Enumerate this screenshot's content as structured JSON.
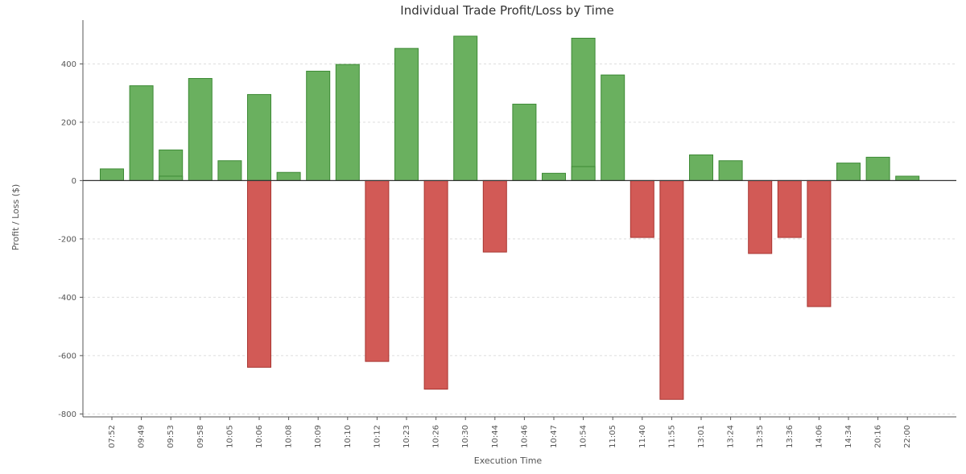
{
  "chart_data": {
    "type": "bar",
    "title": "Individual Trade Profit/Loss by Time",
    "xlabel": "Execution Time",
    "ylabel": "Profit / Loss ($)",
    "ylim": [
      -810,
      550
    ],
    "yticks": [
      -800,
      -600,
      -400,
      -200,
      0,
      200,
      400
    ],
    "grid": true,
    "colors": {
      "profit_fill": "#6ab05f",
      "profit_edge": "#3d8a35",
      "loss_fill": "#d25a56",
      "loss_edge": "#a83531"
    },
    "categories": [
      "07:52",
      "09:49",
      "09:53",
      "09:58",
      "10:05",
      "10:06",
      "10:08",
      "10:09",
      "10:10",
      "10:12",
      "10:23",
      "10:26",
      "10:30",
      "10:44",
      "10:46",
      "10:47",
      "10:54",
      "11:05",
      "11:40",
      "11:55",
      "13:01",
      "13:24",
      "13:35",
      "13:36",
      "14:06",
      "14:34",
      "20:16",
      "22:00"
    ],
    "trades": [
      {
        "time": "07:52",
        "values": [
          40
        ]
      },
      {
        "time": "09:49",
        "values": [
          325
        ]
      },
      {
        "time": "09:53",
        "values": [
          105,
          15
        ]
      },
      {
        "time": "09:58",
        "values": [
          350
        ]
      },
      {
        "time": "10:05",
        "values": [
          68
        ]
      },
      {
        "time": "10:06",
        "values": [
          295,
          -640
        ]
      },
      {
        "time": "10:08",
        "values": [
          28
        ]
      },
      {
        "time": "10:09",
        "values": [
          375
        ]
      },
      {
        "time": "10:10",
        "values": [
          398
        ]
      },
      {
        "time": "10:12",
        "values": [
          -620
        ]
      },
      {
        "time": "10:23",
        "values": [
          453
        ]
      },
      {
        "time": "10:26",
        "values": [
          -715
        ]
      },
      {
        "time": "10:30",
        "values": [
          495
        ]
      },
      {
        "time": "10:44",
        "values": [
          -245
        ]
      },
      {
        "time": "10:46",
        "values": [
          262
        ]
      },
      {
        "time": "10:47",
        "values": [
          25
        ]
      },
      {
        "time": "10:54",
        "values": [
          488,
          48
        ]
      },
      {
        "time": "11:05",
        "values": [
          362
        ]
      },
      {
        "time": "11:40",
        "values": [
          -195
        ]
      },
      {
        "time": "11:55",
        "values": [
          -750
        ]
      },
      {
        "time": "13:01",
        "values": [
          88
        ]
      },
      {
        "time": "13:24",
        "values": [
          68
        ]
      },
      {
        "time": "13:35",
        "values": [
          -250
        ]
      },
      {
        "time": "13:36",
        "values": [
          -195
        ]
      },
      {
        "time": "14:06",
        "values": [
          -432
        ]
      },
      {
        "time": "14:34",
        "values": [
          60
        ]
      },
      {
        "time": "20:16",
        "values": [
          80
        ]
      },
      {
        "time": "22:00",
        "values": [
          15
        ]
      }
    ]
  }
}
